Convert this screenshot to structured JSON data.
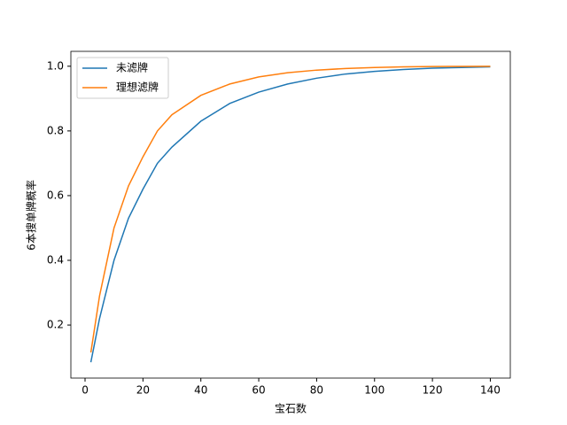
{
  "chart_data": {
    "type": "line",
    "x": [
      2,
      5,
      10,
      15,
      20,
      25,
      30,
      40,
      50,
      60,
      70,
      80,
      90,
      100,
      110,
      120,
      130,
      140
    ],
    "series": [
      {
        "name": "未滤牌",
        "color": "#1f77b4",
        "values": [
          0.085,
          0.22,
          0.4,
          0.53,
          0.62,
          0.7,
          0.75,
          0.83,
          0.885,
          0.92,
          0.945,
          0.963,
          0.976,
          0.984,
          0.99,
          0.994,
          0.996,
          0.998
        ]
      },
      {
        "name": "理想滤牌",
        "color": "#ff7f0e",
        "values": [
          0.115,
          0.29,
          0.5,
          0.63,
          0.72,
          0.8,
          0.85,
          0.91,
          0.945,
          0.967,
          0.98,
          0.988,
          0.993,
          0.996,
          0.998,
          0.999,
          0.9995,
          0.9998
        ]
      }
    ],
    "xlabel": "宝石数",
    "ylabel": "6本搜单牌概率",
    "xlim": [
      -4.9,
      146.9
    ],
    "ylim": [
      0.036,
      1.046
    ],
    "xticks": [
      0,
      20,
      40,
      60,
      80,
      100,
      120,
      140
    ],
    "yticks": [
      0.2,
      0.4,
      0.6,
      0.8,
      {
        "value": 1,
        "label": "1.0"
      }
    ],
    "legend": "upper left"
  }
}
